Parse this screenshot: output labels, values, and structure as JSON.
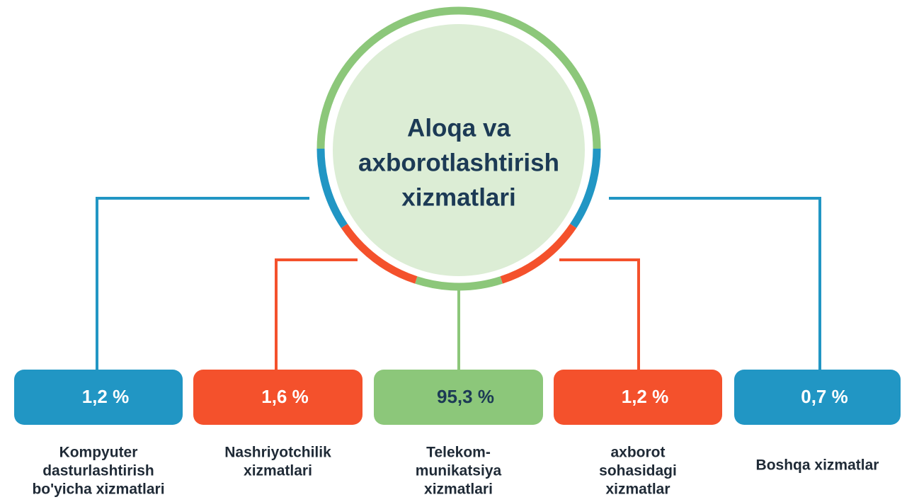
{
  "center": {
    "lines": [
      "Aloqa va",
      "axborotlashtirish",
      "xizmatlari"
    ]
  },
  "nodes": [
    {
      "value": "1,2 %",
      "label": [
        "Kompyuter",
        "dasturlashtirish",
        "bo'yicha xizmatlari"
      ]
    },
    {
      "value": "1,6 %",
      "label": [
        "Nashriyotchilik",
        "xizmatlari"
      ]
    },
    {
      "value": "95,3 %",
      "label": [
        "Telekom-",
        "munikatsiya",
        "xizmatlari"
      ]
    },
    {
      "value": "1,2 %",
      "label": [
        "axborot",
        "sohasidagi",
        "xizmatlar"
      ]
    },
    {
      "value": "0,7 %",
      "label": [
        "Boshqa xizmatlar"
      ]
    }
  ]
}
